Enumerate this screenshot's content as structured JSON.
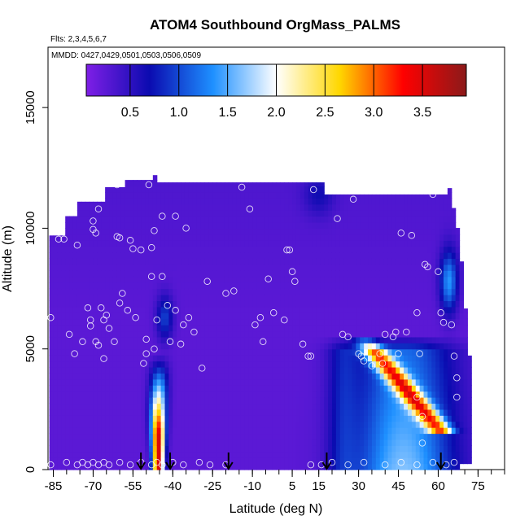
{
  "chart_data": {
    "type": "heatmap",
    "title": "ATOM4 Southbound OrgMass_PALMS",
    "flights_note": "Flts: 2,3,4,5,6,7",
    "dates_note": "MMDD: 0427,0429,0501,0503,0506,0509",
    "xlabel": "Latitude (deg N)",
    "ylabel": "Altitude (m)",
    "xlim": [
      -87,
      85
    ],
    "ylim": [
      0,
      17500
    ],
    "x_ticks": [
      -85,
      -70,
      -55,
      -40,
      -25,
      -10,
      5,
      15,
      30,
      45,
      60,
      75
    ],
    "x_tick_labels": [
      "-85",
      "-70",
      "-55",
      "-40",
      "-25",
      "-10",
      "5",
      "15",
      "30",
      "45",
      "60",
      "75"
    ],
    "y_ticks": [
      0,
      5000,
      10000,
      15000
    ],
    "y_tick_labels": [
      "0",
      "5000",
      "10000",
      "15000"
    ],
    "colorbar": {
      "range": [
        0.05,
        3.95
      ],
      "ticks": [
        0.5,
        1.0,
        1.5,
        2.0,
        2.5,
        3.0,
        3.5
      ],
      "tick_labels": [
        "0.5",
        "1.0",
        "1.5",
        "2.0",
        "2.5",
        "3.0",
        "3.5"
      ],
      "colors": [
        "#7f1fe6",
        "#0b0bb0",
        "#1e90ff",
        "#ffffff",
        "#ffd700",
        "#ff0000",
        "#8b1a1a"
      ]
    },
    "arrow_latitudes": [
      -52,
      -41,
      -19,
      18,
      61
    ],
    "background_value": 0.25,
    "plumes": [
      {
        "name": "southern-column",
        "lat_center": -45.5,
        "lat_width": 1.6,
        "alt_top": 4800,
        "peak": 3.5
      },
      {
        "name": "southern-upper-blob",
        "lat_center": -43,
        "lat_width": 2.5,
        "alt_center": 6300,
        "alt_width": 600,
        "peak": 0.6
      },
      {
        "name": "northern-slant-band",
        "lat_start": 33,
        "lat_end": 58,
        "alt_start": 5300,
        "alt_end": 2000,
        "peak": 3.1
      },
      {
        "name": "northern-broad",
        "lat_center": 46,
        "lat_width": 12,
        "alt_top": 5500,
        "peak": 1.8
      },
      {
        "name": "northern-upper-blob",
        "lat_center": 64,
        "lat_width": 2.5,
        "alt_center": 7800,
        "alt_width": 800,
        "peak": 1.2
      }
    ],
    "points": [
      [
        -86,
        6300
      ],
      [
        -83,
        9550
      ],
      [
        -81,
        9550
      ],
      [
        -79,
        5600
      ],
      [
        -77,
        4800
      ],
      [
        -76,
        9300
      ],
      [
        -74,
        5300
      ],
      [
        -72,
        6700
      ],
      [
        -71,
        5950
      ],
      [
        -71,
        6200
      ],
      [
        -70,
        10300
      ],
      [
        -70,
        9950
      ],
      [
        -69,
        9800
      ],
      [
        -69,
        5300
      ],
      [
        -68,
        5150
      ],
      [
        -68,
        10800
      ],
      [
        -67,
        11400
      ],
      [
        -67,
        6700
      ],
      [
        -66,
        6200
      ],
      [
        -65,
        6400
      ],
      [
        -66,
        4600
      ],
      [
        -64,
        5850
      ],
      [
        -62,
        5300
      ],
      [
        -61,
        9650
      ],
      [
        -61,
        11800
      ],
      [
        -60,
        9600
      ],
      [
        -60,
        6900
      ],
      [
        -59,
        7300
      ],
      [
        -57,
        6600
      ],
      [
        -56,
        9500
      ],
      [
        -55,
        9150
      ],
      [
        -54,
        6300
      ],
      [
        -52,
        9100
      ],
      [
        -51,
        4400
      ],
      [
        -50,
        4800
      ],
      [
        -50,
        5400
      ],
      [
        -49,
        11800
      ],
      [
        -48,
        9200
      ],
      [
        -48,
        8000
      ],
      [
        -47,
        9900
      ],
      [
        -47,
        5000
      ],
      [
        -46,
        6200
      ],
      [
        -44,
        10500
      ],
      [
        -44,
        8000
      ],
      [
        -42,
        6800
      ],
      [
        -41,
        5300
      ],
      [
        -39,
        6600
      ],
      [
        -39,
        10500
      ],
      [
        -37,
        5200
      ],
      [
        -36,
        6000
      ],
      [
        -35,
        10000
      ],
      [
        -34,
        6300
      ],
      [
        -32,
        5700
      ],
      [
        -29,
        4200
      ],
      [
        -27,
        7800
      ],
      [
        -20,
        7300
      ],
      [
        -17,
        7400
      ],
      [
        -14,
        11700
      ],
      [
        -11,
        10800
      ],
      [
        -9,
        6000
      ],
      [
        -7,
        6300
      ],
      [
        -6,
        5300
      ],
      [
        -4,
        7900
      ],
      [
        -2,
        6500
      ],
      [
        2,
        6200
      ],
      [
        3,
        9100
      ],
      [
        4,
        9100
      ],
      [
        5,
        8200
      ],
      [
        6,
        7800
      ],
      [
        9,
        5200
      ],
      [
        11,
        4700
      ],
      [
        12,
        4700
      ],
      [
        13,
        11600
      ],
      [
        22,
        10400
      ],
      [
        24,
        5600
      ],
      [
        26,
        5500
      ],
      [
        28,
        11200
      ],
      [
        30,
        4800
      ],
      [
        31,
        4700
      ],
      [
        32,
        4500
      ],
      [
        35,
        4300
      ],
      [
        38,
        4800
      ],
      [
        39,
        4400
      ],
      [
        40,
        5600
      ],
      [
        43,
        5500
      ],
      [
        44,
        5700
      ],
      [
        45,
        4800
      ],
      [
        46,
        9800
      ],
      [
        48,
        5700
      ],
      [
        50,
        9700
      ],
      [
        52,
        6500
      ],
      [
        52,
        3000
      ],
      [
        53,
        4800
      ],
      [
        54,
        2200
      ],
      [
        54,
        1100
      ],
      [
        55,
        8500
      ],
      [
        56,
        8400
      ],
      [
        58,
        11400
      ],
      [
        60,
        8200
      ],
      [
        61,
        6500
      ],
      [
        62,
        6100
      ],
      [
        65,
        6000
      ],
      [
        66,
        4700
      ],
      [
        67,
        3800
      ],
      [
        67,
        3000
      ],
      [
        -86,
        200
      ],
      [
        -80,
        300
      ],
      [
        -76,
        200
      ],
      [
        -74,
        300
      ],
      [
        -72,
        200
      ],
      [
        -70,
        300
      ],
      [
        -68,
        200
      ],
      [
        -66,
        300
      ],
      [
        -64,
        200
      ],
      [
        -60,
        300
      ],
      [
        -56,
        200
      ],
      [
        -52,
        300
      ],
      [
        -48,
        200
      ],
      [
        -46,
        300
      ],
      [
        -44,
        200
      ],
      [
        -40,
        300
      ],
      [
        -36,
        200
      ],
      [
        -30,
        300
      ],
      [
        -26,
        200
      ],
      [
        -20,
        200
      ],
      [
        12,
        200
      ],
      [
        16,
        200
      ],
      [
        20,
        300
      ],
      [
        26,
        200
      ],
      [
        32,
        300
      ],
      [
        40,
        200
      ],
      [
        46,
        300
      ],
      [
        52,
        200
      ],
      [
        58,
        300
      ],
      [
        63,
        200
      ],
      [
        66,
        300
      ]
    ]
  }
}
